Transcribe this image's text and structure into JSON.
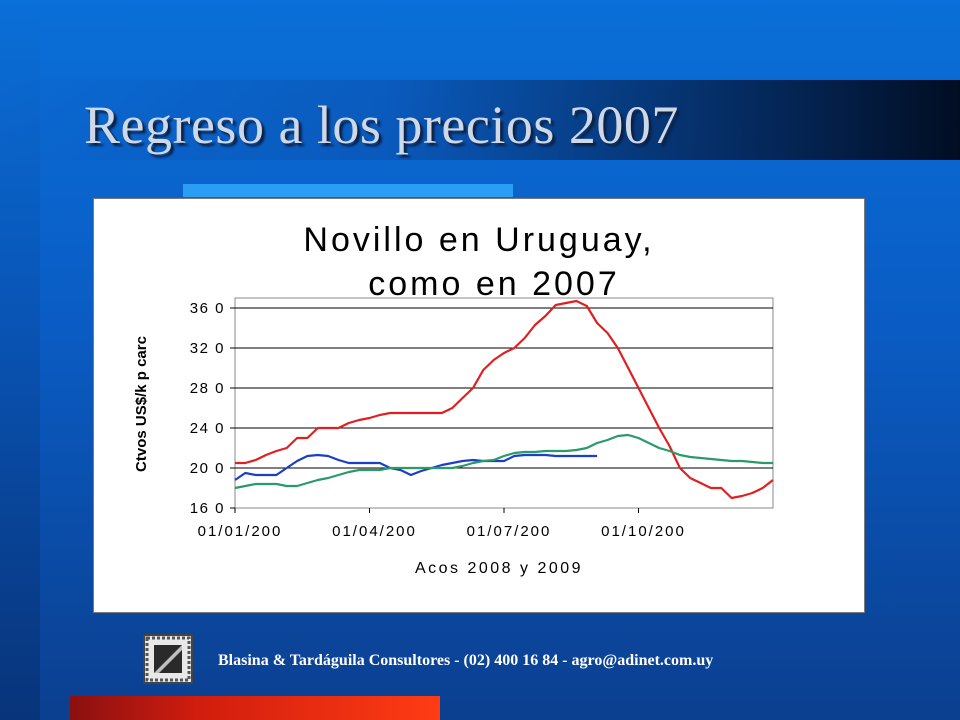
{
  "slide": {
    "title": "Regreso a los precios 2007",
    "footer": "Blasina & Tardáguila Consultores - (02) 400 16 84 - agro@adinet.com.uy",
    "logo_icon": "film-frame-logo-icon"
  },
  "chart_data": {
    "type": "line",
    "title": [
      "Novillo en Uruguay,",
      "como en 2007"
    ],
    "ylabel": "Ctvos US$/k p carc",
    "xlabel": "Acos 2008 y 2009",
    "ylim": [
      160,
      370
    ],
    "yticks": [
      160,
      200,
      240,
      280,
      320,
      360
    ],
    "ytick_labels": [
      "16 0",
      "20 0",
      "24 0",
      "28 0",
      "32 0",
      "36 0"
    ],
    "xlim": [
      0,
      52
    ],
    "xtick_positions": [
      0,
      13,
      26,
      39
    ],
    "xtick_labels": [
      "01/01/200",
      "01/04/200",
      "01/07/200",
      "01/10/200"
    ],
    "grid": "horizontal",
    "legend": "none",
    "series": [
      {
        "color": "#e02020",
        "x": [
          0,
          1,
          2,
          3,
          4,
          5,
          6,
          7,
          8,
          9,
          10,
          11,
          12,
          13,
          14,
          15,
          16,
          17,
          18,
          19,
          20,
          21,
          22,
          23,
          24,
          25,
          26,
          27,
          28,
          29,
          30,
          31,
          32,
          33,
          34,
          35,
          36,
          37,
          38,
          39,
          40,
          41,
          42,
          43,
          44,
          45,
          46,
          47,
          48,
          49,
          50,
          51,
          52
        ],
        "y": [
          205,
          205,
          208,
          213,
          217,
          220,
          230,
          230,
          240,
          240,
          240,
          245,
          248,
          250,
          253,
          255,
          255,
          255,
          255,
          255,
          255,
          260,
          270,
          280,
          298,
          308,
          315,
          320,
          330,
          343,
          352,
          363,
          365,
          367,
          362,
          345,
          335,
          320,
          300,
          280,
          260,
          240,
          222,
          200,
          190,
          185,
          180,
          180,
          170,
          172,
          175,
          180,
          188
        ]
      },
      {
        "color": "#1c3ec8",
        "x": [
          0,
          1,
          2,
          3,
          4,
          5,
          6,
          7,
          8,
          9,
          10,
          11,
          12,
          13,
          14,
          15,
          16,
          17,
          18,
          19,
          20,
          21,
          22,
          23,
          24,
          25,
          26,
          27,
          28,
          29,
          30,
          31,
          32,
          33,
          34,
          35
        ],
        "y": [
          188,
          195,
          193,
          193,
          193,
          200,
          207,
          212,
          213,
          212,
          208,
          205,
          205,
          205,
          205,
          200,
          198,
          193,
          197,
          200,
          203,
          205,
          207,
          208,
          207,
          207,
          207,
          212,
          213,
          213,
          213,
          212,
          212,
          212,
          212,
          212
        ]
      },
      {
        "color": "#2a9a6a",
        "x": [
          0,
          1,
          2,
          3,
          4,
          5,
          6,
          7,
          8,
          9,
          10,
          11,
          12,
          13,
          14,
          15,
          16,
          17,
          18,
          19,
          20,
          21,
          22,
          23,
          24,
          25,
          26,
          27,
          28,
          29,
          30,
          31,
          32,
          33,
          34,
          35,
          36,
          37,
          38,
          39,
          40,
          41,
          42,
          43,
          44,
          45,
          46,
          47,
          48,
          49,
          50,
          51,
          52
        ],
        "y": [
          180,
          182,
          184,
          184,
          184,
          182,
          182,
          185,
          188,
          190,
          193,
          196,
          198,
          198,
          198,
          200,
          200,
          200,
          200,
          200,
          200,
          200,
          202,
          205,
          207,
          208,
          212,
          215,
          216,
          216,
          217,
          217,
          217,
          218,
          220,
          225,
          228,
          232,
          233,
          230,
          225,
          220,
          217,
          213,
          211,
          210,
          209,
          208,
          207,
          207,
          206,
          205,
          205
        ]
      }
    ]
  }
}
